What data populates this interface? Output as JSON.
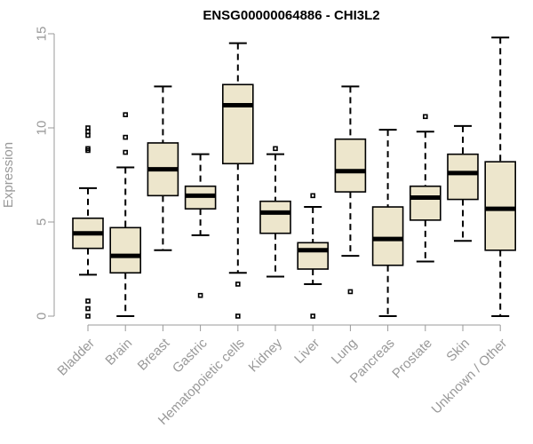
{
  "chart_data": {
    "type": "boxplot",
    "title": "ENSG00000064886 - CHI3L2",
    "xlabel": "",
    "ylabel": "Expression",
    "ylim": [
      0,
      15
    ],
    "yticks": [
      0,
      5,
      10,
      15
    ],
    "grid": false,
    "legend": "none",
    "box_color": "#EDE6CC",
    "line_color": "#000000",
    "axis_color": "#999999",
    "categories": [
      "Bladder",
      "Brain",
      "Breast",
      "Gastric",
      "Hematopoietic cells",
      "Kidney",
      "Liver",
      "Lung",
      "Pancreas",
      "Prostate",
      "Skin",
      "Unknown / Other"
    ],
    "boxes": [
      {
        "name": "Bladder",
        "whisker_low": 2.2,
        "q1": 3.6,
        "median": 4.4,
        "q3": 5.2,
        "whisker_high": 6.8,
        "outliers": [
          0.0,
          0.4,
          0.8,
          8.8,
          8.9,
          9.6,
          9.8,
          10.0
        ]
      },
      {
        "name": "Brain",
        "whisker_low": 0.0,
        "q1": 2.3,
        "median": 3.2,
        "q3": 4.7,
        "whisker_high": 7.9,
        "outliers": [
          8.7,
          9.5,
          10.7
        ]
      },
      {
        "name": "Breast",
        "whisker_low": 3.5,
        "q1": 6.4,
        "median": 7.8,
        "q3": 9.2,
        "whisker_high": 12.2,
        "outliers": []
      },
      {
        "name": "Gastric",
        "whisker_low": 4.3,
        "q1": 5.7,
        "median": 6.4,
        "q3": 6.9,
        "whisker_high": 8.6,
        "outliers": [
          1.1
        ]
      },
      {
        "name": "Hematopoietic cells",
        "whisker_low": 2.3,
        "q1": 8.1,
        "median": 11.2,
        "q3": 12.3,
        "whisker_high": 14.5,
        "outliers": [
          0.0,
          1.7
        ]
      },
      {
        "name": "Kidney",
        "whisker_low": 2.1,
        "q1": 4.4,
        "median": 5.5,
        "q3": 6.1,
        "whisker_high": 8.6,
        "outliers": [
          8.9
        ]
      },
      {
        "name": "Liver",
        "whisker_low": 1.7,
        "q1": 2.5,
        "median": 3.5,
        "q3": 3.9,
        "whisker_high": 5.8,
        "outliers": [
          0.0,
          6.4
        ]
      },
      {
        "name": "Lung",
        "whisker_low": 3.2,
        "q1": 6.6,
        "median": 7.7,
        "q3": 9.4,
        "whisker_high": 12.2,
        "outliers": [
          1.3
        ]
      },
      {
        "name": "Pancreas",
        "whisker_low": 0.0,
        "q1": 2.7,
        "median": 4.1,
        "q3": 5.8,
        "whisker_high": 9.9,
        "outliers": []
      },
      {
        "name": "Prostate",
        "whisker_low": 2.9,
        "q1": 5.1,
        "median": 6.3,
        "q3": 6.9,
        "whisker_high": 9.8,
        "outliers": [
          10.6
        ]
      },
      {
        "name": "Skin",
        "whisker_low": 4.0,
        "q1": 6.2,
        "median": 7.6,
        "q3": 8.6,
        "whisker_high": 10.1,
        "outliers": []
      },
      {
        "name": "Unknown / Other",
        "whisker_low": 0.0,
        "q1": 3.5,
        "median": 5.7,
        "q3": 8.2,
        "whisker_high": 14.8,
        "outliers": []
      }
    ]
  }
}
